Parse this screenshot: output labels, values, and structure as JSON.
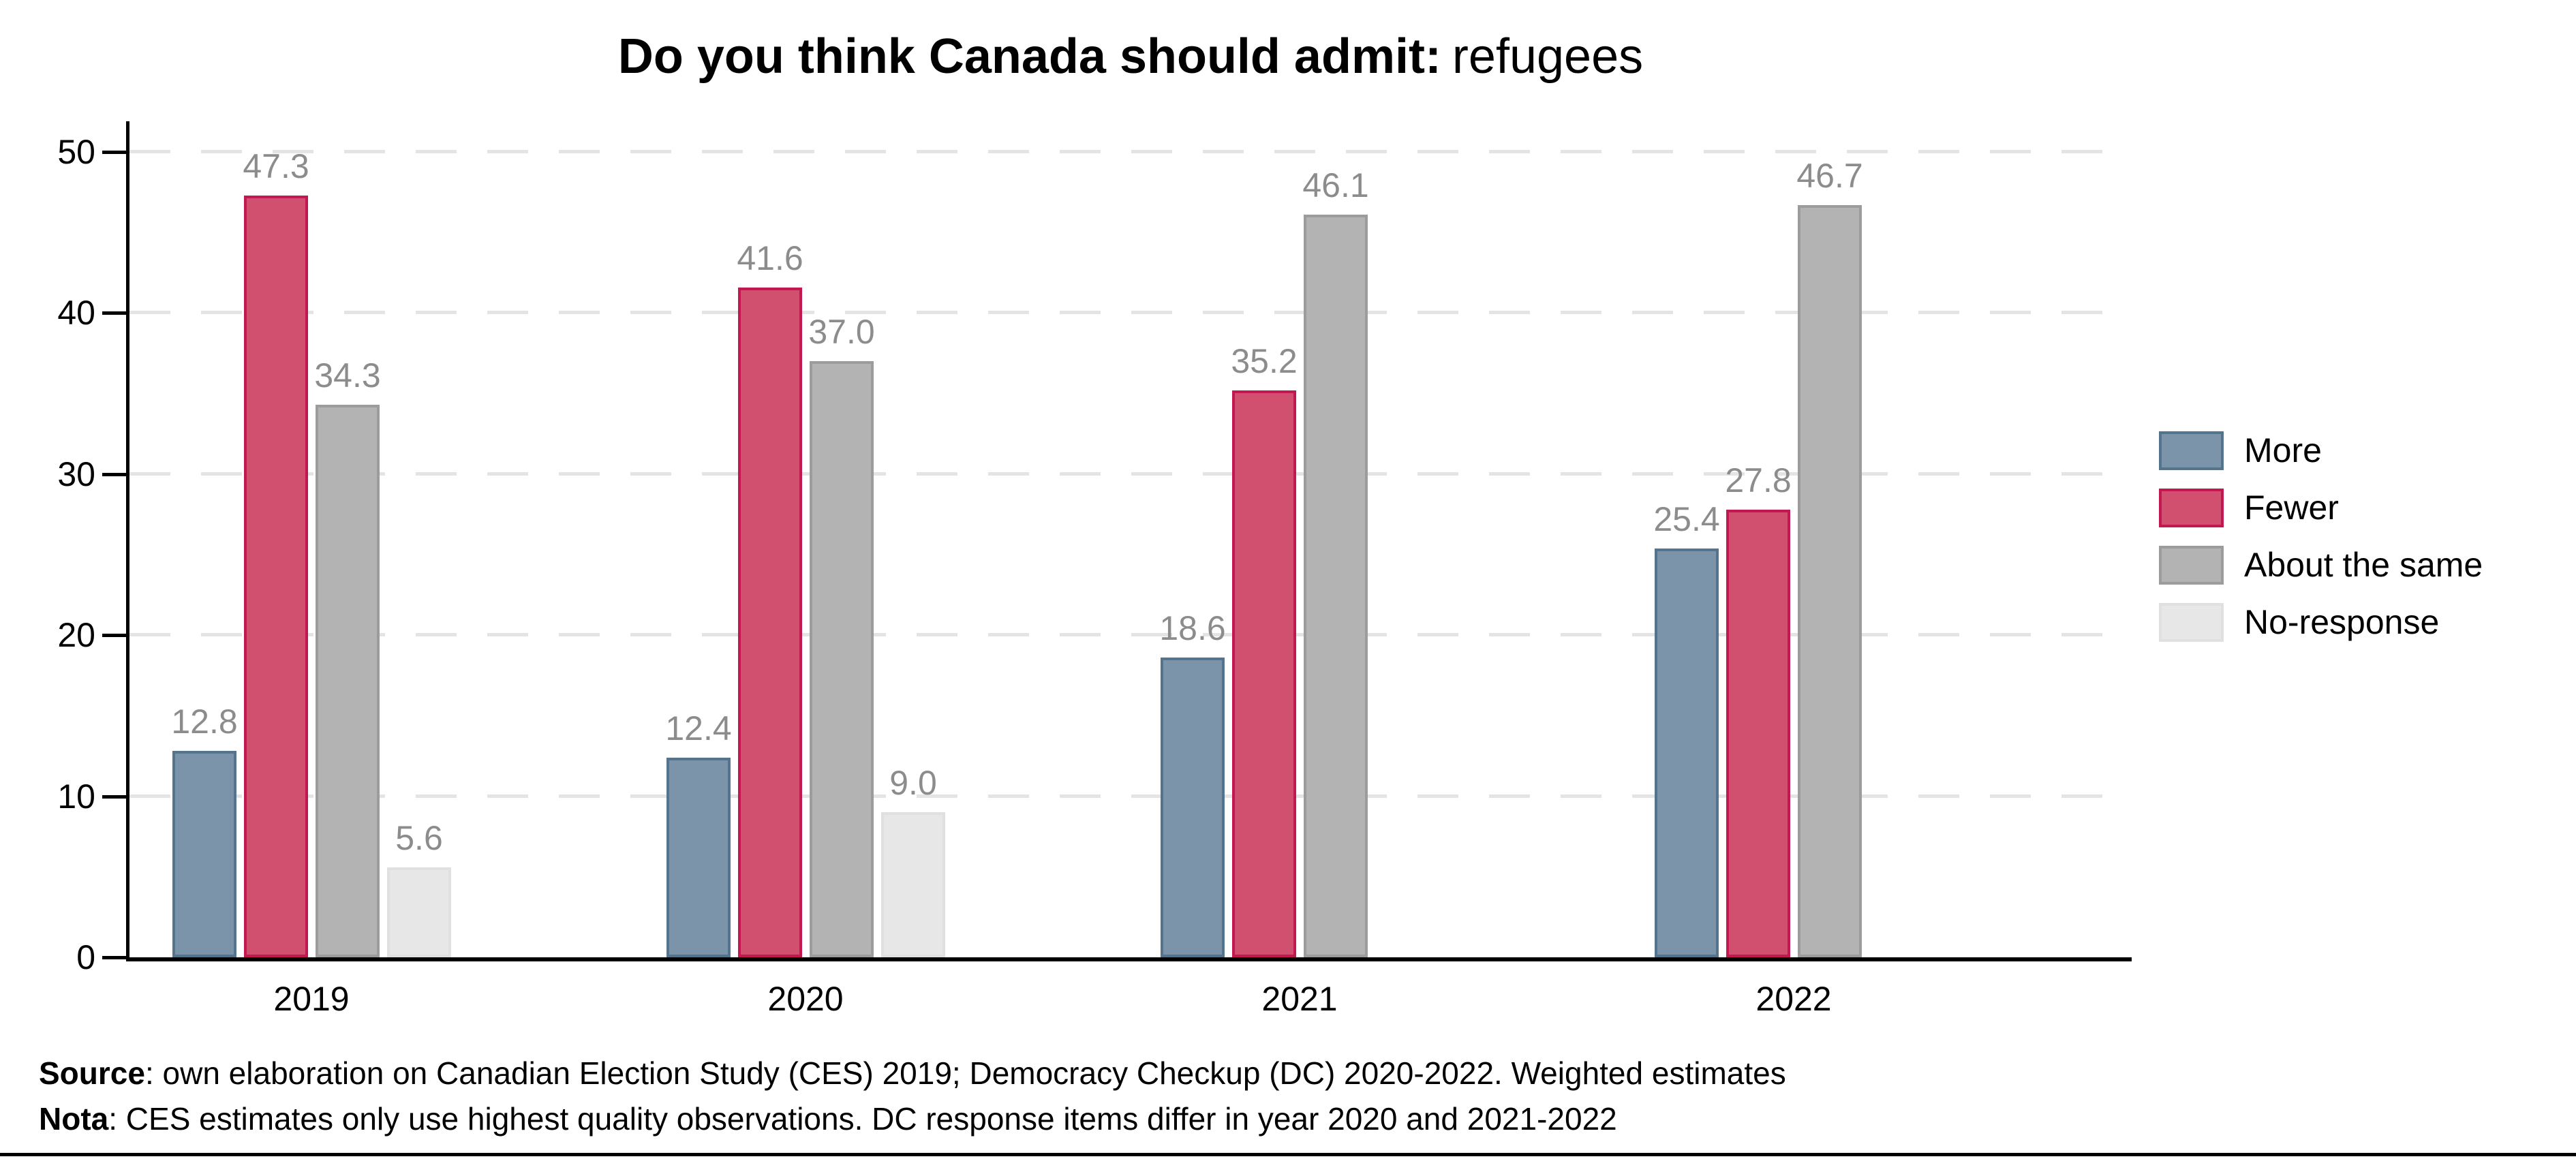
{
  "title": {
    "bold": "Do you think Canada should admit:",
    "regular": "refugees"
  },
  "notes": [
    {
      "bold": "Source",
      "text": ": own elaboration on Canadian Election Study (CES) 2019; Democracy Checkup (DC) 2020-2022. Weighted estimates"
    },
    {
      "bold": "Nota",
      "text": ": CES estimates only use highest quality observations. DC response items differ in year 2020 and 2021-2022"
    }
  ],
  "chart_data": {
    "type": "bar",
    "title": "Do you think Canada should admit: refugees",
    "categories": [
      "2019",
      "2020",
      "2021",
      "2022"
    ],
    "series": [
      {
        "name": "More",
        "color": "#7B94A9",
        "border": "#54748E",
        "values": [
          12.8,
          12.4,
          18.6,
          25.4
        ]
      },
      {
        "name": "Fewer",
        "color": "#D15070",
        "border": "#C2174F",
        "values": [
          47.3,
          41.6,
          35.2,
          27.8
        ]
      },
      {
        "name": "About the same",
        "color": "#B3B3B3",
        "border": "#9C9C9C",
        "values": [
          34.3,
          37.0,
          46.1,
          46.7
        ]
      },
      {
        "name": "No-response",
        "color": "#E7E7E7",
        "border": "#E0E0E0",
        "values": [
          5.6,
          9.0,
          null,
          null
        ]
      }
    ],
    "ylim": [
      0,
      50
    ],
    "yticks": [
      0,
      10,
      20,
      30,
      40,
      50
    ],
    "grid": true,
    "grid_color": "#E4E4E4",
    "legend_position": "right",
    "value_labels": true,
    "value_label_color": "#8C8C8C",
    "axis_color": "#000000"
  }
}
